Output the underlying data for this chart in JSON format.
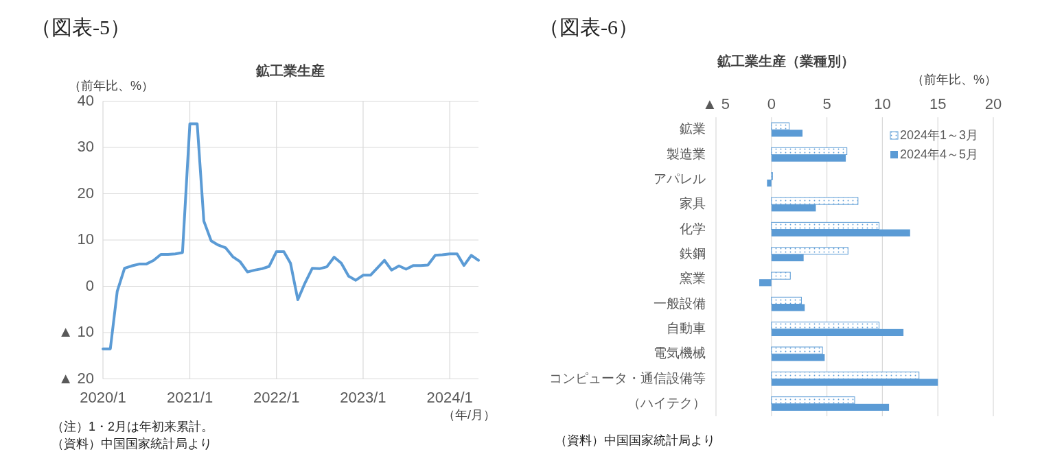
{
  "chart_data": [
    {
      "type": "line",
      "title": "（図表-5）",
      "subtitle": "鉱工業生産",
      "ylabel": "（前年比、%）",
      "xlabel": "（年/月）",
      "x": [
        "2020-01",
        "2020-02",
        "2020-03",
        "2020-04",
        "2020-05",
        "2020-06",
        "2020-07",
        "2020-08",
        "2020-09",
        "2020-10",
        "2020-11",
        "2020-12",
        "2021-01",
        "2021-02",
        "2021-03",
        "2021-04",
        "2021-05",
        "2021-06",
        "2021-07",
        "2021-08",
        "2021-09",
        "2021-10",
        "2021-11",
        "2021-12",
        "2022-01",
        "2022-02",
        "2022-03",
        "2022-04",
        "2022-05",
        "2022-06",
        "2022-07",
        "2022-08",
        "2022-09",
        "2022-10",
        "2022-11",
        "2022-12",
        "2023-01",
        "2023-02",
        "2023-03",
        "2023-04",
        "2023-05",
        "2023-06",
        "2023-07",
        "2023-08",
        "2023-09",
        "2023-10",
        "2023-11",
        "2023-12",
        "2024-01",
        "2024-02",
        "2024-03",
        "2024-04",
        "2024-05"
      ],
      "series": [
        {
          "color": "#5b9bd5",
          "values": [
            -13.5,
            -13.5,
            -1.1,
            3.9,
            4.4,
            4.8,
            4.8,
            5.6,
            6.9,
            6.9,
            7.0,
            7.3,
            35.1,
            35.1,
            14.1,
            9.8,
            8.9,
            8.3,
            6.4,
            5.3,
            3.1,
            3.5,
            3.8,
            4.3,
            7.5,
            7.5,
            5.0,
            -2.9,
            0.7,
            3.9,
            3.8,
            4.2,
            6.3,
            5.0,
            2.2,
            1.3,
            2.4,
            2.4,
            3.9,
            5.6,
            3.5,
            4.4,
            3.7,
            4.5,
            4.5,
            4.6,
            6.7,
            6.8,
            7.0,
            7.0,
            4.5,
            6.7,
            5.6
          ]
        }
      ],
      "xlim": [
        "2020-01",
        "2024-05"
      ],
      "xticks": [
        {
          "value": "2020-01",
          "label": "2020/1"
        },
        {
          "value": "2021-01",
          "label": "2021/1"
        },
        {
          "value": "2022-01",
          "label": "2022/1"
        },
        {
          "value": "2023-01",
          "label": "2023/1"
        },
        {
          "value": "2024-01",
          "label": "2024/1"
        }
      ],
      "ylim": [
        -20,
        40
      ],
      "yticks": [
        40,
        30,
        20,
        10,
        0,
        {
          "value": -10,
          "label": "▲ 10"
        },
        {
          "value": -20,
          "label": "▲ 20"
        }
      ],
      "grid": true,
      "annotations": [
        "（注）1・2月は年初来累計。",
        "（資料）中国国家統計局より"
      ]
    },
    {
      "type": "bar",
      "orientation": "horizontal",
      "title": "（図表-6）",
      "subtitle": "鉱工業生産（業種別）",
      "xlabel": "（前年比、%）",
      "categories": [
        "鉱業",
        "製造業",
        "アパレル",
        "家具",
        "化学",
        "鉄鋼",
        "窯業",
        "一般設備",
        "自動車",
        "電気機械",
        "コンピュータ・通信設備等",
        "（ハイテク）"
      ],
      "series": [
        {
          "name": "2024年1～3月",
          "color": "#5b9bd5",
          "values": [
            1.6,
            6.8,
            0.1,
            7.8,
            9.7,
            6.9,
            1.7,
            2.7,
            9.7,
            4.6,
            13.3,
            7.5
          ]
        },
        {
          "name": "2024年4～5月",
          "color": "#5b9bd5",
          "values": [
            2.8,
            6.7,
            -0.4,
            4.0,
            12.5,
            2.9,
            -1.1,
            3.0,
            11.9,
            4.8,
            15.0,
            10.6
          ]
        }
      ],
      "xlim": [
        -5,
        20
      ],
      "xticks": [
        {
          "value": -5,
          "label": "▲ 5"
        },
        0,
        5,
        10,
        15,
        20
      ],
      "grid": "x",
      "legend": "top right",
      "annotations": [
        "（資料）中国国家統計局より"
      ]
    }
  ]
}
